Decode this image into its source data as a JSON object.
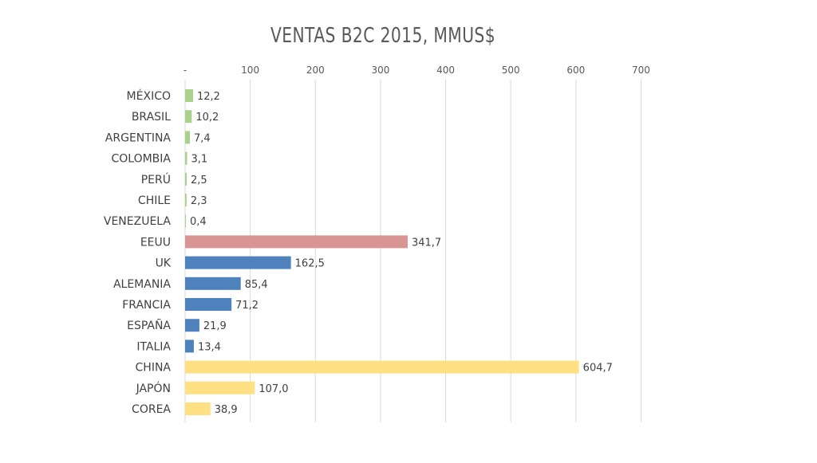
{
  "chart_data": {
    "type": "bar",
    "orientation": "horizontal",
    "title": "VENTAS B2C 2015, MMUS$",
    "xlabel": "",
    "ylabel": "",
    "xlim": [
      0,
      700
    ],
    "x_ticks": [
      0,
      100,
      200,
      300,
      400,
      500,
      600,
      700
    ],
    "x_tick_labels": [
      "-",
      "100",
      "200",
      "300",
      "400",
      "500",
      "600",
      "700"
    ],
    "grid": true,
    "legend": "none",
    "categories": [
      "MÉXICO",
      "BRASIL",
      "ARGENTINA",
      "COLOMBIA",
      "PERÚ",
      "CHILE",
      "VENEZUELA",
      "EEUU",
      "UK",
      "ALEMANIA",
      "FRANCIA",
      "ESPAÑA",
      "ITALIA",
      "CHINA",
      "JAPÓN",
      "COREA"
    ],
    "values": [
      12.2,
      10.2,
      7.4,
      3.1,
      2.5,
      2.3,
      0.4,
      341.7,
      162.5,
      85.4,
      71.2,
      21.9,
      13.4,
      604.7,
      107.0,
      38.9
    ],
    "data_labels": [
      "12,2",
      "10,2",
      "7,4",
      "3,1",
      "2,5",
      "2,3",
      "0,4",
      "341,7",
      "162,5",
      "85,4",
      "71,2",
      "21,9",
      "13,4",
      "604,7",
      "107,0",
      "38,9"
    ],
    "bar_colors": [
      "#a9d18e",
      "#a9d18e",
      "#a9d18e",
      "#a9d18e",
      "#a9d18e",
      "#a9d18e",
      "#a9d18e",
      "#d99594",
      "#4f81bd",
      "#4f81bd",
      "#4f81bd",
      "#4f81bd",
      "#4f81bd",
      "#ffe082",
      "#ffe082",
      "#ffe082"
    ]
  }
}
